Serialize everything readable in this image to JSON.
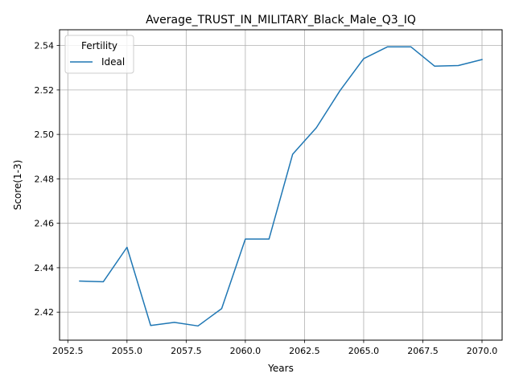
{
  "chart_data": {
    "type": "line",
    "title": "Average_TRUST_IN_MILITARY_Black_Male_Q3_IQ",
    "xlabel": "Years",
    "ylabel": "Score(1-3)",
    "xlim": [
      2052.15,
      2070.85
    ],
    "ylim": [
      2.4074,
      2.5471
    ],
    "x_ticks": [
      2052.5,
      2055.0,
      2057.5,
      2060.0,
      2062.5,
      2065.0,
      2067.5,
      2070.0
    ],
    "x_tick_labels": [
      "2052.5",
      "2055.0",
      "2057.5",
      "2060.0",
      "2062.5",
      "2065.0",
      "2067.5",
      "2070.0"
    ],
    "y_ticks": [
      2.42,
      2.44,
      2.46,
      2.48,
      2.5,
      2.52,
      2.54
    ],
    "y_tick_labels": [
      "2.42",
      "2.44",
      "2.46",
      "2.48",
      "2.50",
      "2.52",
      "2.54"
    ],
    "grid": true,
    "legend": {
      "title": "Fertility",
      "placement": "top-left"
    },
    "series": [
      {
        "name": "Ideal",
        "color": "#1f77b4",
        "x": [
          2053,
          2054,
          2055,
          2056,
          2057,
          2058,
          2059,
          2060,
          2061,
          2062,
          2063,
          2064,
          2065,
          2066,
          2067,
          2068,
          2069,
          2070
        ],
        "y": [
          2.434,
          2.4337,
          2.4492,
          2.414,
          2.4154,
          2.4138,
          2.4216,
          2.4529,
          2.4529,
          2.4911,
          2.503,
          2.5197,
          2.5341,
          2.5394,
          2.5394,
          2.5307,
          2.531,
          2.5337
        ]
      }
    ]
  }
}
